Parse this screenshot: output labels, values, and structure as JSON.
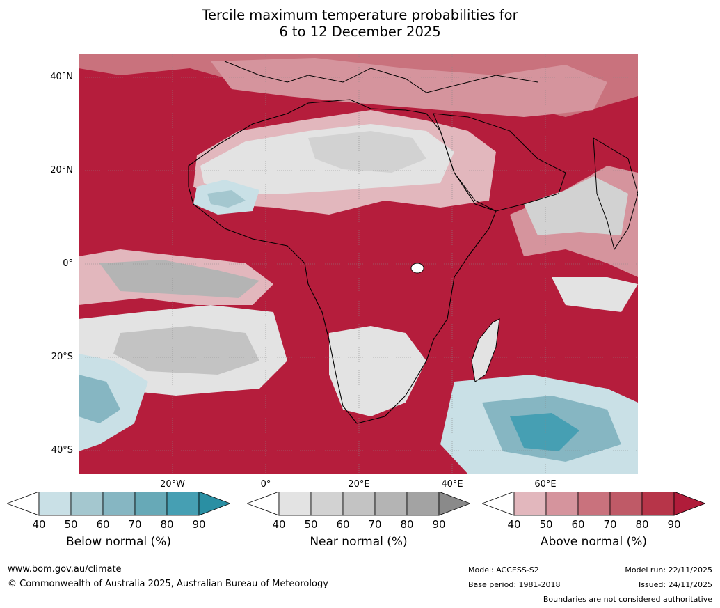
{
  "title": {
    "line1": "Tercile maximum temperature probabilities for",
    "line2": "6 to 12 December 2025"
  },
  "axes": {
    "lat_labels": [
      "40°N",
      "20°N",
      "0°",
      "20°S",
      "40°S"
    ],
    "lon_labels": [
      "20°W",
      "0°",
      "20°E",
      "40°E",
      "60°E"
    ]
  },
  "colorbars": [
    {
      "label": "Below normal (%)",
      "ticks": [
        "40",
        "50",
        "60",
        "70",
        "80",
        "90"
      ],
      "colors": [
        "#ffffff",
        "#c9e0e6",
        "#a4c7cf",
        "#86b6c2",
        "#67a9b7",
        "#469fb3",
        "#2a8fa3"
      ]
    },
    {
      "label": "Near normal (%)",
      "ticks": [
        "40",
        "50",
        "60",
        "70",
        "80",
        "90"
      ],
      "colors": [
        "#ffffff",
        "#e3e3e3",
        "#d2d2d2",
        "#c3c3c3",
        "#b4b4b4",
        "#a3a3a3",
        "#8a8a8a"
      ]
    },
    {
      "label": "Above normal (%)",
      "ticks": [
        "40",
        "50",
        "60",
        "70",
        "80",
        "90"
      ],
      "colors": [
        "#ffffff",
        "#e2b7bd",
        "#d5949d",
        "#c9727d",
        "#bf5a67",
        "#b73549",
        "#b01c3a"
      ]
    }
  ],
  "footer": {
    "website": "www.bom.gov.au/climate",
    "copyright": "© Commonwealth of Australia 2025, Australian Bureau of Meteorology",
    "model": "Model: ACCESS-S2",
    "base_period": "Base period: 1981-2018",
    "model_run": "Model run: 22/11/2025",
    "issued": "Issued: 24/11/2025",
    "disclaimer": "Boundaries are not considered authoritative"
  }
}
